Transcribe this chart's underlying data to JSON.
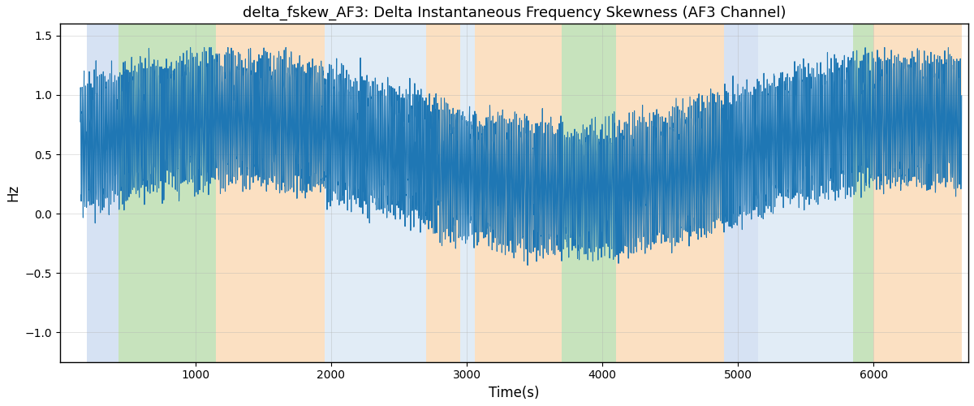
{
  "title": "delta_fskew_AF3: Delta Instantaneous Frequency Skewness (AF3 Channel)",
  "xlabel": "Time(s)",
  "ylabel": "Hz",
  "ylim": [
    -1.25,
    1.6
  ],
  "yticks": [
    -1.0,
    -0.5,
    0.0,
    0.5,
    1.0,
    1.5
  ],
  "xlim": [
    0,
    6700
  ],
  "xticks": [
    1000,
    2000,
    3000,
    4000,
    5000,
    6000
  ],
  "line_color": "#1f77b4",
  "line_width": 0.8,
  "background_regions": [
    {
      "xmin": 200,
      "xmax": 430,
      "color": "#aec6e8",
      "alpha": 0.5
    },
    {
      "xmin": 430,
      "xmax": 1150,
      "color": "#90c97c",
      "alpha": 0.5
    },
    {
      "xmin": 1150,
      "xmax": 1950,
      "color": "#f9c890",
      "alpha": 0.55
    },
    {
      "xmin": 1950,
      "xmax": 2700,
      "color": "#c9ddf0",
      "alpha": 0.55
    },
    {
      "xmin": 2700,
      "xmax": 2950,
      "color": "#f9c890",
      "alpha": 0.55
    },
    {
      "xmin": 2950,
      "xmax": 3060,
      "color": "#c9ddf0",
      "alpha": 0.55
    },
    {
      "xmin": 3060,
      "xmax": 3700,
      "color": "#f9c890",
      "alpha": 0.55
    },
    {
      "xmin": 3700,
      "xmax": 4100,
      "color": "#90c97c",
      "alpha": 0.5
    },
    {
      "xmin": 4100,
      "xmax": 4900,
      "color": "#f9c890",
      "alpha": 0.55
    },
    {
      "xmin": 4900,
      "xmax": 5150,
      "color": "#aec6e8",
      "alpha": 0.5
    },
    {
      "xmin": 5150,
      "xmax": 5850,
      "color": "#c9ddf0",
      "alpha": 0.55
    },
    {
      "xmin": 5850,
      "xmax": 6000,
      "color": "#90c97c",
      "alpha": 0.5
    },
    {
      "xmin": 6000,
      "xmax": 6650,
      "color": "#f9c890",
      "alpha": 0.55
    }
  ],
  "title_fontsize": 13,
  "figsize": [
    12.0,
    5.0
  ],
  "dpi": 100,
  "grid_color": "#b0b0b0",
  "grid_alpha": 0.5,
  "grid_linewidth": 0.5,
  "bg_white": "#ffffff"
}
